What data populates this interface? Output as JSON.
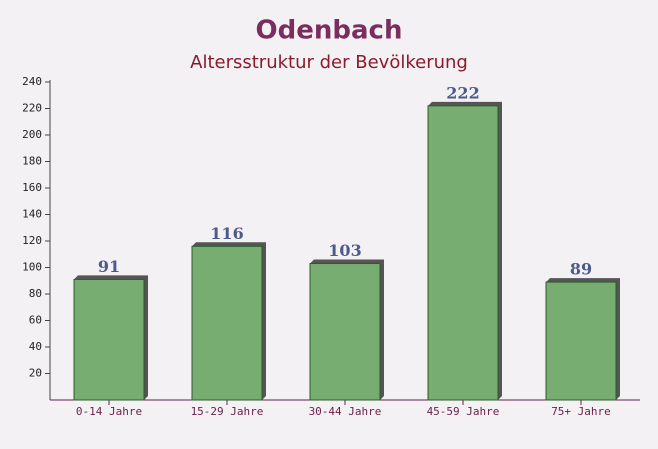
{
  "chart_data": {
    "type": "bar",
    "title": "Odenbach",
    "subtitle": "Altersstruktur der Bevölkerung",
    "categories": [
      "0-14 Jahre",
      "15-29 Jahre",
      "30-44 Jahre",
      "45-59 Jahre",
      "75+ Jahre"
    ],
    "values": [
      91,
      116,
      103,
      222,
      89
    ],
    "color": "#6aa564",
    "ylim": [
      0,
      240
    ],
    "yticks": [
      20,
      40,
      60,
      80,
      100,
      120,
      140,
      160,
      180,
      200,
      220,
      240
    ]
  }
}
